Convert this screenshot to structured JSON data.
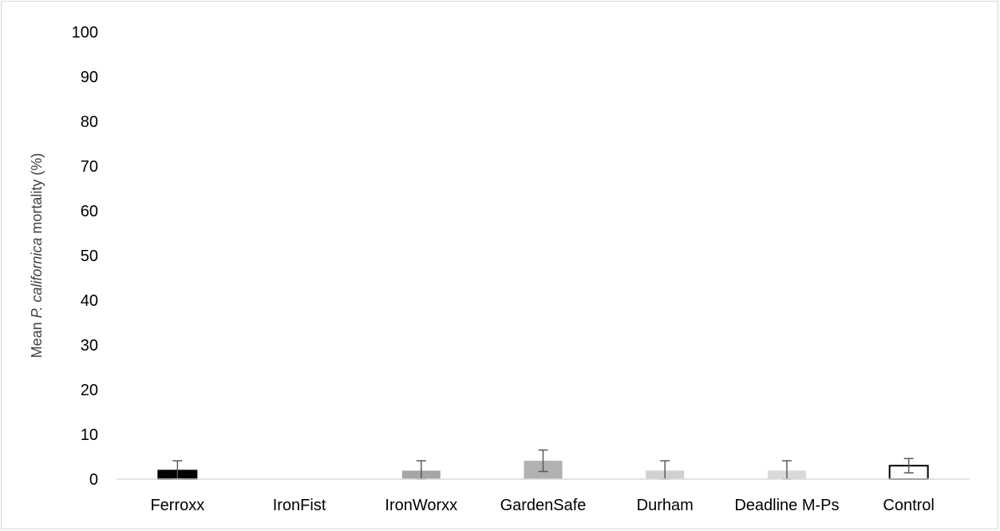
{
  "chart_data": {
    "type": "bar",
    "categories": [
      "Ferroxx",
      "IronFist",
      "IronWorxx",
      "GardenSafe",
      "Durham",
      "Deadline M-Ps",
      "Control"
    ],
    "values": [
      1.9,
      0,
      1.9,
      4.1,
      1.9,
      1.9,
      3.0
    ],
    "error": [
      2.2,
      0,
      2.2,
      2.4,
      2.2,
      2.2,
      1.6
    ],
    "ylabel": {
      "prefix": "Mean ",
      "italic": "P. californica",
      "suffix": " mortality (%)"
    },
    "ylim": [
      0,
      100
    ],
    "yticks": [
      0,
      10,
      20,
      30,
      40,
      50,
      60,
      70,
      80,
      90,
      100
    ],
    "grid": false,
    "legend": "none",
    "colors": [
      "#000000",
      "#7f7f7f",
      "#a6a6a6",
      "#b2b0b0",
      "#d0d0d0",
      "#d9d9d9",
      "#ffffff"
    ],
    "bar_outline": [
      "#000000",
      "none",
      "none",
      "none",
      "none",
      "none",
      "#000000"
    ]
  }
}
